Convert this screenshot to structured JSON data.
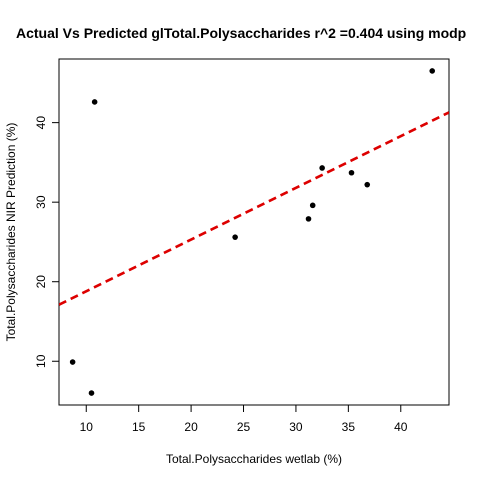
{
  "chart_data": {
    "type": "scatter",
    "title": "Actual Vs Predicted glTotal.Polysaccharides r^2 =0.404 using modp",
    "xlabel": "Total.Polysaccharides wetlab (%)",
    "ylabel": "Total.Polysaccharides NIR Prediction (%)",
    "xlim": [
      7.4,
      44.6
    ],
    "ylim": [
      4.5,
      48.0
    ],
    "xticks": [
      10,
      15,
      20,
      25,
      30,
      35,
      40
    ],
    "yticks": [
      10,
      20,
      30,
      40
    ],
    "grid": false,
    "points": [
      {
        "x": 8.7,
        "y": 9.9
      },
      {
        "x": 10.5,
        "y": 6.0
      },
      {
        "x": 10.8,
        "y": 42.6
      },
      {
        "x": 24.2,
        "y": 25.6
      },
      {
        "x": 31.2,
        "y": 27.9
      },
      {
        "x": 31.6,
        "y": 29.6
      },
      {
        "x": 32.5,
        "y": 34.3
      },
      {
        "x": 35.3,
        "y": 33.7
      },
      {
        "x": 36.8,
        "y": 32.2
      },
      {
        "x": 43.0,
        "y": 46.5
      }
    ],
    "fit_line": {
      "slope": 0.65,
      "intercept": 12.3,
      "color": "#DD0000",
      "style": "dashed"
    },
    "point_color": "#000000"
  }
}
